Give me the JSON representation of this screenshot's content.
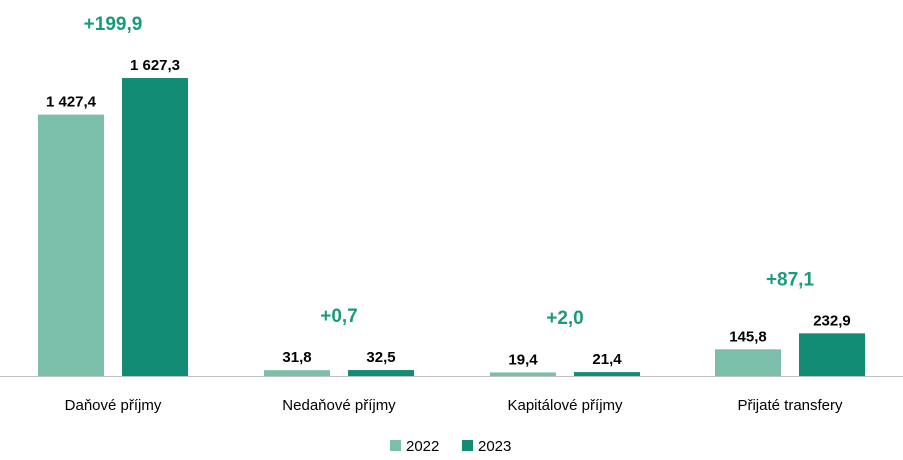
{
  "chart_data": {
    "type": "bar",
    "categories": [
      "Daňové příjmy",
      "Nedaňové příjmy",
      "Kapitálové příjmy",
      "Přijaté transfery"
    ],
    "series": [
      {
        "name": "2022",
        "values": [
          1427.4,
          31.8,
          19.4,
          145.8
        ],
        "labels": [
          "1 427,4",
          "31,8",
          "19,4",
          "145,8"
        ],
        "color": "#7bbfaa"
      },
      {
        "name": "2023",
        "values": [
          1627.3,
          32.5,
          21.4,
          232.9
        ],
        "labels": [
          "1 627,3",
          "32,5",
          "21,4",
          "232,9"
        ],
        "color": "#128c74"
      }
    ],
    "differences": [
      "+199,9",
      "+0,7",
      "+2,0",
      "+87,1"
    ],
    "difference_color": "#1a9a7c",
    "axis_color": "#bfbfbf",
    "legend_position": "bottom",
    "grid": false
  }
}
